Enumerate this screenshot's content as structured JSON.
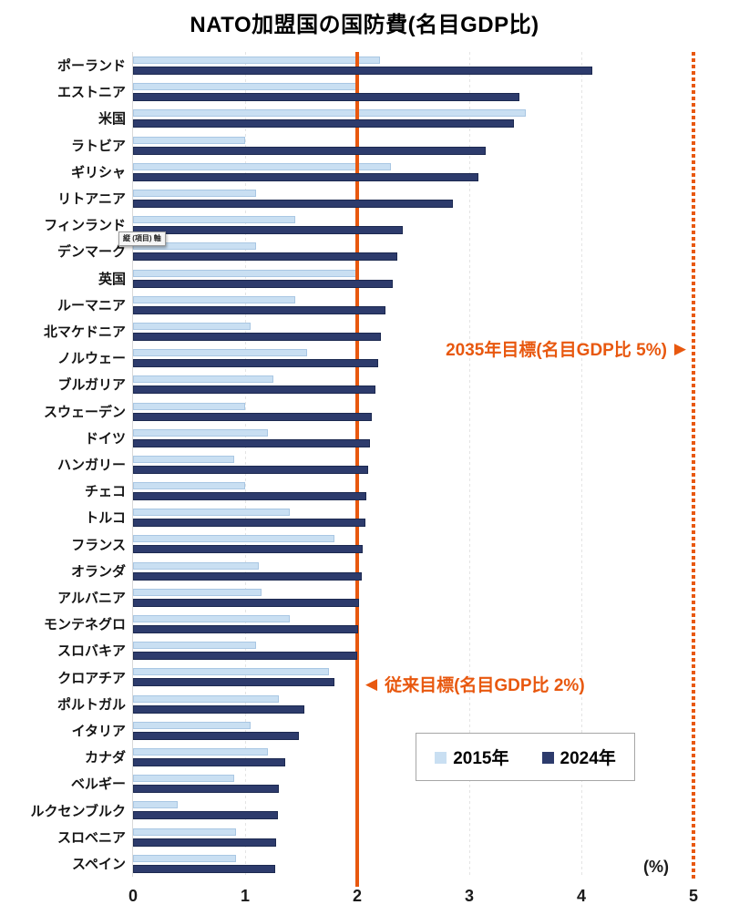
{
  "title": "NATO加盟国の国防費(名目GDP比)",
  "axis": {
    "ticks": [
      "0",
      "1",
      "2",
      "3",
      "4",
      "5"
    ],
    "min": 0,
    "max": 5,
    "unit_label": "(%)"
  },
  "axis_tooltip": "縦 (項目) 軸",
  "annotations": {
    "target_2035": "2035年目標(名目GDP比 5%)",
    "arrow_right": "▶",
    "target_legacy": "従来目標(名目GDP比 2%)",
    "arrow_left": "◀"
  },
  "legend": [
    {
      "label": "2015年",
      "color": "#c9dff2"
    },
    {
      "label": "2024年",
      "color": "#2d3b6c"
    }
  ],
  "colors": {
    "bar_2015": "#c9dff2",
    "bar_2015_border": "#a9c7e3",
    "bar_2024": "#2d3b6c",
    "bar_2024_border": "#1c2950",
    "accent_orange": "#e8580f",
    "gridline": "#e4e4e4",
    "axis_line": "#d9d9d9",
    "legend_border": "#a6a6a6"
  },
  "chart_data": {
    "type": "bar",
    "orientation": "horizontal",
    "title": "NATO加盟国の国防費(名目GDP比)",
    "xlabel": "(%)",
    "ylabel": "",
    "xlim": [
      0,
      5
    ],
    "grid": true,
    "legend_position": "bottom-right",
    "categories": [
      "ポーランド",
      "エストニア",
      "米国",
      "ラトビア",
      "ギリシャ",
      "リトアニア",
      "フィンランド",
      "デンマーク",
      "英国",
      "ルーマニア",
      "北マケドニア",
      "ノルウェー",
      "ブルガリア",
      "スウェーデン",
      "ドイツ",
      "ハンガリー",
      "チェコ",
      "トルコ",
      "フランス",
      "オランダ",
      "アルバニア",
      "モンテネグロ",
      "スロバキア",
      "クロアチア",
      "ポルトガル",
      "イタリア",
      "カナダ",
      "ベルギー",
      "ルクセンブルク",
      "スロベニア",
      "スペイン"
    ],
    "series": [
      {
        "name": "2015年",
        "color": "#c9dff2",
        "values": [
          2.2,
          2.0,
          3.5,
          1.0,
          2.3,
          1.1,
          1.45,
          1.1,
          2.0,
          1.45,
          1.05,
          1.55,
          1.25,
          1.0,
          1.2,
          0.9,
          1.0,
          1.4,
          1.8,
          1.12,
          1.15,
          1.4,
          1.1,
          1.75,
          1.3,
          1.05,
          1.2,
          0.9,
          0.4,
          0.92,
          0.92
        ]
      },
      {
        "name": "2024年",
        "color": "#2d3b6c",
        "values": [
          4.1,
          3.45,
          3.4,
          3.15,
          3.08,
          2.85,
          2.41,
          2.36,
          2.32,
          2.25,
          2.21,
          2.19,
          2.16,
          2.13,
          2.11,
          2.1,
          2.08,
          2.07,
          2.05,
          2.04,
          2.02,
          2.01,
          2.0,
          1.8,
          1.53,
          1.48,
          1.36,
          1.3,
          1.29,
          1.28,
          1.27
        ]
      }
    ],
    "reference_lines": [
      {
        "value": 2,
        "style": "solid",
        "color": "#e8580f",
        "label": "従来目標(名目GDP比 2%)"
      },
      {
        "value": 5,
        "style": "dotted",
        "color": "#e8580f",
        "label": "2035年目標(名目GDP比 5%)"
      }
    ]
  }
}
